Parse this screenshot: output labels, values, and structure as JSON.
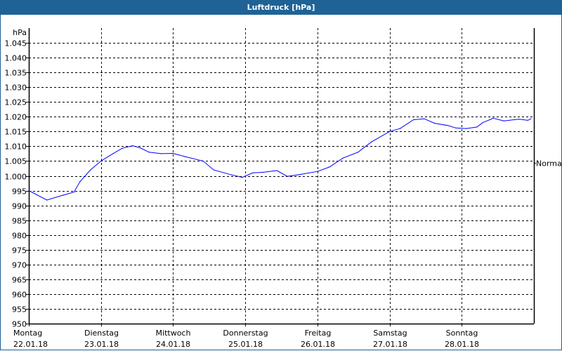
{
  "window": {
    "title": "Luftdruck [hPa]"
  },
  "colors": {
    "title_bar": "#1e6296",
    "line": "#0000ff",
    "grid": "#000000"
  },
  "chart_data": {
    "type": "line",
    "title": "Luftdruck [hPa]",
    "ylabel": "hPa",
    "ylim": [
      950,
      1050
    ],
    "yticks": [
      950,
      955,
      960,
      965,
      970,
      975,
      980,
      985,
      990,
      995,
      1000,
      1005,
      1010,
      1015,
      1020,
      1025,
      1030,
      1035,
      1040,
      1045
    ],
    "ytick_labels": [
      "950",
      "955",
      "960",
      "965",
      "970",
      "975",
      "980",
      "985",
      "990",
      "995",
      "1.000",
      "1.005",
      "1.010",
      "1.015",
      "1.020",
      "1.025",
      "1.030",
      "1.035",
      "1.040",
      "1.045"
    ],
    "xlim": [
      "2018-01-22T00:00",
      "2018-01-29T00:00"
    ],
    "xticks": [
      {
        "day": "Montag",
        "date": "22.01.18",
        "at": "2018-01-22T00:00"
      },
      {
        "day": "Dienstag",
        "date": "23.01.18",
        "at": "2018-01-23T00:00"
      },
      {
        "day": "Mittwoch",
        "date": "24.01.18",
        "at": "2018-01-24T00:00"
      },
      {
        "day": "Donnerstag",
        "date": "25.01.18",
        "at": "2018-01-25T00:00"
      },
      {
        "day": "Freitag",
        "date": "26.01.18",
        "at": "2018-01-26T00:00"
      },
      {
        "day": "Samstag",
        "date": "27.01.18",
        "at": "2018-01-27T00:00"
      },
      {
        "day": "Sonntag",
        "date": "28.01.18",
        "at": "2018-01-28T00:00"
      }
    ],
    "grid": true,
    "reference": {
      "label": "Normal",
      "value": 1004.5
    },
    "series": [
      {
        "x": [
          "2018-01-22T00:00",
          "2018-01-22T06:00",
          "2018-01-22T11:30",
          "2018-01-22T15:00",
          "2018-01-22T17:00",
          "2018-01-22T20:30",
          "2018-01-23T00:00",
          "2018-01-23T04:00",
          "2018-01-23T07:00",
          "2018-01-23T10:30",
          "2018-01-23T13:00",
          "2018-01-23T16:00",
          "2018-01-23T20:00",
          "2018-01-24T00:00",
          "2018-01-24T04:00",
          "2018-01-24T10:00",
          "2018-01-24T13:30",
          "2018-01-24T19:30",
          "2018-01-24T23:00",
          "2018-01-25T02:30",
          "2018-01-25T06:00",
          "2018-01-25T10:30",
          "2018-01-25T14:00",
          "2018-01-25T18:30",
          "2018-01-26T00:00",
          "2018-01-26T04:00",
          "2018-01-26T08:30",
          "2018-01-26T13:30",
          "2018-01-26T18:00",
          "2018-01-27T00:00",
          "2018-01-27T03:30",
          "2018-01-27T08:00",
          "2018-01-27T11:30",
          "2018-01-27T15:00",
          "2018-01-27T19:30",
          "2018-01-27T22:00",
          "2018-01-28T01:30",
          "2018-01-28T05:00",
          "2018-01-28T07:00",
          "2018-01-28T10:30",
          "2018-01-28T14:00",
          "2018-01-28T19:00",
          "2018-01-28T22:00",
          "2018-01-28T23:00"
        ],
        "y": [
          995.0,
          991.8,
          993.5,
          994.5,
          998.0,
          1002.0,
          1005.0,
          1007.5,
          1009.3,
          1010.2,
          1009.5,
          1008.0,
          1007.5,
          1007.6,
          1006.5,
          1005.0,
          1002.0,
          1000.3,
          999.5,
          1001.0,
          1001.2,
          1001.8,
          999.8,
          1000.5,
          1001.5,
          1003.0,
          1006.0,
          1008.0,
          1011.5,
          1015.0,
          1016.0,
          1019.0,
          1019.3,
          1017.8,
          1017.0,
          1016.2,
          1016.0,
          1016.5,
          1018.0,
          1019.5,
          1018.6,
          1019.2,
          1018.8,
          1019.3
        ]
      }
    ]
  }
}
